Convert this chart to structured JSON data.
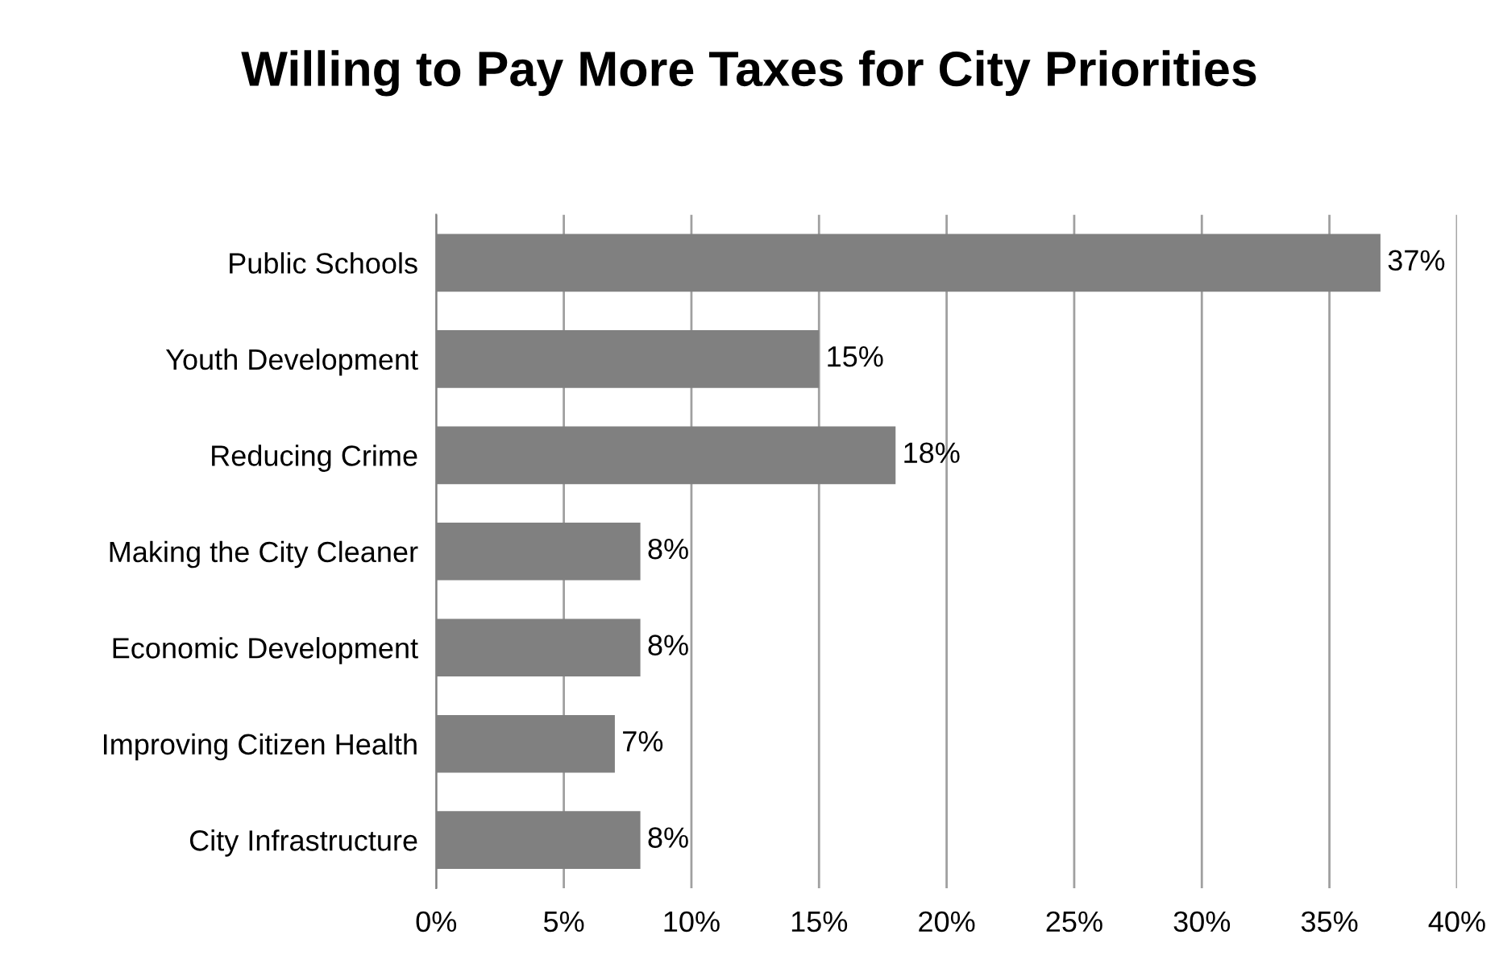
{
  "chart_data": {
    "type": "bar",
    "orientation": "horizontal",
    "title": "Willing to Pay More Taxes for City Priorities",
    "categories": [
      "Public Schools",
      "Youth Development",
      "Reducing Crime",
      "Making the City Cleaner",
      "Economic Development",
      "Improving Citizen Health",
      "City Infrastructure"
    ],
    "values": [
      37,
      15,
      18,
      8,
      8,
      7,
      8
    ],
    "value_labels": [
      "37%",
      "15%",
      "18%",
      "8%",
      "8%",
      "7%",
      "8%"
    ],
    "color": "#808080",
    "xlim": [
      0,
      40
    ],
    "xticks": [
      {
        "value": 0,
        "label": "0%"
      },
      {
        "value": 5,
        "label": "5%"
      },
      {
        "value": 10,
        "label": "10%"
      },
      {
        "value": 15,
        "label": "15%"
      },
      {
        "value": 20,
        "label": "20%"
      },
      {
        "value": 25,
        "label": "25%"
      },
      {
        "value": 30,
        "label": "30%"
      },
      {
        "value": 35,
        "label": "35%"
      },
      {
        "value": 40,
        "label": "40%"
      }
    ],
    "grid": "x"
  }
}
